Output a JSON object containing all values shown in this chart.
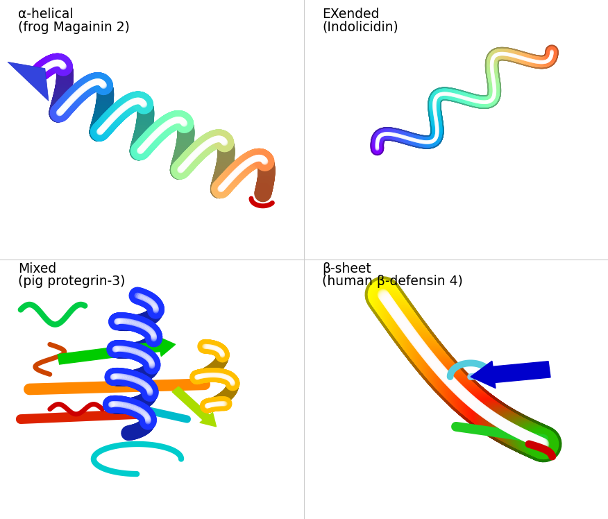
{
  "background_color": "#ffffff",
  "figsize": [
    8.76,
    7.48
  ],
  "dpi": 100,
  "label_tl1": "α-helical",
  "label_tl2": "(frog Magainin 2)",
  "label_tr1": "EXended",
  "label_tr2": "(Indolicidin)",
  "label_bl1": "Mixed",
  "label_bl2": "(pig protegrin-3)",
  "label_br1": "β-sheet",
  "label_br2": "(human β-defensin 4)",
  "label_fontsize": 13.5
}
